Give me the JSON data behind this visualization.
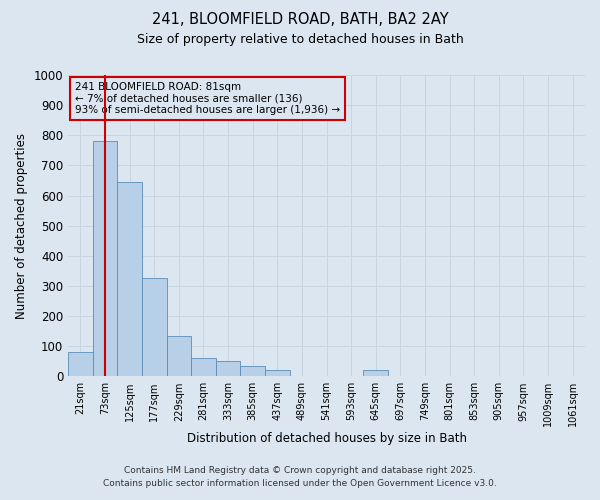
{
  "title_line1": "241, BLOOMFIELD ROAD, BATH, BA2 2AY",
  "title_line2": "Size of property relative to detached houses in Bath",
  "xlabel": "Distribution of detached houses by size in Bath",
  "ylabel": "Number of detached properties",
  "bar_labels": [
    "21sqm",
    "73sqm",
    "125sqm",
    "177sqm",
    "229sqm",
    "281sqm",
    "333sqm",
    "385sqm",
    "437sqm",
    "489sqm",
    "541sqm",
    "593sqm",
    "645sqm",
    "697sqm",
    "749sqm",
    "801sqm",
    "853sqm",
    "905sqm",
    "957sqm",
    "1009sqm",
    "1061sqm"
  ],
  "bar_values": [
    80,
    780,
    645,
    325,
    135,
    60,
    50,
    35,
    20,
    0,
    0,
    0,
    20,
    0,
    0,
    0,
    0,
    0,
    0,
    0,
    0
  ],
  "bar_color": "#b8cfe8",
  "bar_edge_color": "#5b8db8",
  "grid_color": "#c8d4e0",
  "background_color": "#dce6f0",
  "vline_color": "#cc0000",
  "vline_x": 1.0,
  "annotation_box_text": "241 BLOOMFIELD ROAD: 81sqm\n← 7% of detached houses are smaller (136)\n93% of semi-detached houses are larger (1,936) →",
  "annotation_box_edge_color": "#cc0000",
  "ylim": [
    0,
    1000
  ],
  "yticks": [
    0,
    100,
    200,
    300,
    400,
    500,
    600,
    700,
    800,
    900,
    1000
  ],
  "footer_line1": "Contains HM Land Registry data © Crown copyright and database right 2025.",
  "footer_line2": "Contains public sector information licensed under the Open Government Licence v3.0.",
  "fig_width": 6.0,
  "fig_height": 5.0
}
